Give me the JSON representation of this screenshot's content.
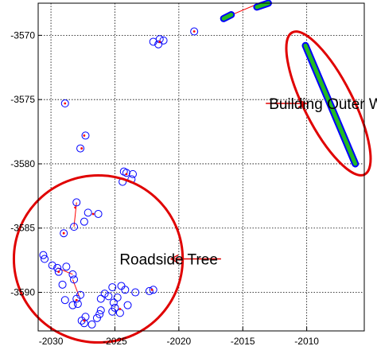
{
  "chart_data": {
    "type": "scatter",
    "xlim": [
      -2031,
      -2005.5
    ],
    "ylim": [
      -3593,
      -3567.5
    ],
    "y_inverted": true,
    "grid": true,
    "grid_style": "dotted",
    "x_ticks": [
      -2030,
      -2025,
      -2020,
      -2015,
      -2010
    ],
    "y_ticks": [
      -3570,
      -3575,
      -3580,
      -3585,
      -3590
    ],
    "x_tick_labels": [
      "-2030",
      "-2025",
      "-2020",
      "-2015",
      "-2010"
    ],
    "y_tick_labels": [
      "-3570",
      "-3575",
      "-3580",
      "-3585",
      "-3590"
    ],
    "colors": {
      "points": "#0000ff",
      "centers": "#ff0000",
      "links": "#ff0000",
      "wall_fill": "#22bb22",
      "annotation": "#e00000",
      "grid": "#000000"
    },
    "series": [
      {
        "role": "scan-points",
        "points": [
          [
            -2028.9,
            -3575.3
          ],
          [
            -2027.3,
            -3577.8
          ],
          [
            -2027.7,
            -3578.8
          ],
          [
            -2024.3,
            -3580.6
          ],
          [
            -2024.1,
            -3580.7
          ],
          [
            -2023.6,
            -3580.8
          ],
          [
            -2023.7,
            -3581.2
          ],
          [
            -2024.4,
            -3581.4
          ],
          [
            -2027.1,
            -3583.8
          ],
          [
            -2026.3,
            -3583.9
          ],
          [
            -2027.4,
            -3584.5
          ],
          [
            -2028.0,
            -3583.0
          ],
          [
            -2028.2,
            -3584.9
          ],
          [
            -2029.0,
            -3585.4
          ],
          [
            -2030.6,
            -3587.1
          ],
          [
            -2030.5,
            -3587.4
          ],
          [
            -2029.9,
            -3587.9
          ],
          [
            -2029.5,
            -3588.1
          ],
          [
            -2028.8,
            -3588.0
          ],
          [
            -2029.4,
            -3588.4
          ],
          [
            -2028.3,
            -3588.6
          ],
          [
            -2028.2,
            -3589.0
          ],
          [
            -2029.1,
            -3589.4
          ],
          [
            -2027.7,
            -3590.2
          ],
          [
            -2028.0,
            -3590.5
          ],
          [
            -2027.9,
            -3590.9
          ],
          [
            -2028.9,
            -3590.6
          ],
          [
            -2028.3,
            -3591.0
          ],
          [
            -2024.5,
            -3589.5
          ],
          [
            -2024.2,
            -3589.8
          ],
          [
            -2023.4,
            -3590.0
          ],
          [
            -2025.8,
            -3590.1
          ],
          [
            -2025.5,
            -3590.3
          ],
          [
            -2025.2,
            -3589.6
          ],
          [
            -2024.8,
            -3590.4
          ],
          [
            -2026.1,
            -3590.5
          ],
          [
            -2022.0,
            -3589.8
          ],
          [
            -2022.3,
            -3589.9
          ],
          [
            -2024.0,
            -3591.0
          ],
          [
            -2025.0,
            -3591.2
          ],
          [
            -2025.2,
            -3591.5
          ],
          [
            -2024.6,
            -3591.6
          ],
          [
            -2025.1,
            -3590.8
          ],
          [
            -2026.1,
            -3591.4
          ],
          [
            -2026.2,
            -3591.7
          ],
          [
            -2026.4,
            -3592.0
          ],
          [
            -2027.3,
            -3591.9
          ],
          [
            -2027.6,
            -3592.2
          ],
          [
            -2027.4,
            -3592.4
          ],
          [
            -2026.8,
            -3592.5
          ],
          [
            -2022.0,
            -3570.5
          ],
          [
            -2021.5,
            -3570.3
          ],
          [
            -2021.2,
            -3570.4
          ],
          [
            -2021.6,
            -3570.7
          ],
          [
            -2018.8,
            -3569.7
          ]
        ]
      },
      {
        "role": "cluster-centers",
        "points": [
          [
            -2028.9,
            -3575.3
          ],
          [
            -2027.4,
            -3577.8
          ],
          [
            -2027.6,
            -3578.8
          ],
          [
            -2024.1,
            -3580.8
          ],
          [
            -2026.7,
            -3583.9
          ],
          [
            -2028.1,
            -3583.4
          ],
          [
            -2029.0,
            -3585.4
          ],
          [
            -2029.4,
            -3588.4
          ],
          [
            -2028.0,
            -3590.6
          ],
          [
            -2024.6,
            -3591.3
          ],
          [
            -2022.1,
            -3589.8
          ],
          [
            -2027.4,
            -3592.2
          ],
          [
            -2021.5,
            -3570.5
          ],
          [
            -2018.8,
            -3569.7
          ]
        ]
      },
      {
        "role": "links",
        "segments": [
          [
            [
              -2028.0,
              -3583.0
            ],
            [
              -2028.2,
              -3584.9
            ]
          ],
          [
            [
              -2029.5,
              -3588.1
            ],
            [
              -2028.3,
              -3588.6
            ]
          ],
          [
            [
              -2028.3,
              -3589.0
            ],
            [
              -2027.8,
              -3590.3
            ]
          ],
          [
            [
              -2016.1,
              -3568.5
            ],
            [
              -2013.7,
              -3567.5
            ]
          ]
        ]
      },
      {
        "role": "wall-segments",
        "polylines": [
          [
            [
              -2010.1,
              -3570.8
            ],
            [
              -2006.2,
              -3580.0
            ]
          ],
          [
            [
              -2016.5,
              -3568.7
            ],
            [
              -2015.9,
              -3568.4
            ]
          ],
          [
            [
              -2013.9,
              -3567.8
            ],
            [
              -2013.0,
              -3567.5
            ]
          ]
        ]
      }
    ],
    "annotations": [
      {
        "text": "Building Outer Wall",
        "shape": "ellipse",
        "center": [
          -2008.3,
          -3575.3
        ],
        "radii": [
          1.9,
          6.2
        ],
        "rotation_deg": -27,
        "arrow_tip": [
          -2010.1,
          -3575.3
        ],
        "arrow_tail": [
          -2013.2,
          -3575.3
        ]
      },
      {
        "text": "Roadside Tree",
        "shape": "ellipse",
        "center": [
          -2026.3,
          -3587.4
        ],
        "radii": [
          6.6,
          6.5
        ],
        "rotation_deg": 0,
        "arrow_tip": [
          -2020.6,
          -3587.4
        ],
        "arrow_tail": [
          -2016.7,
          -3587.4
        ]
      }
    ]
  }
}
